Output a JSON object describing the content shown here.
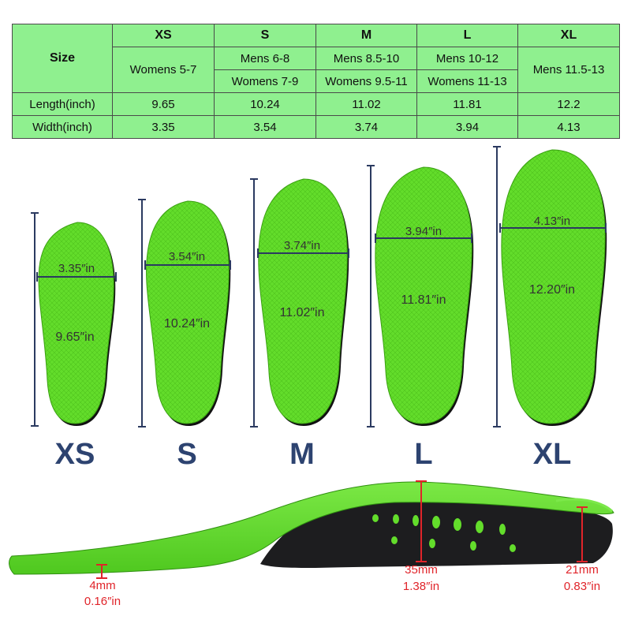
{
  "table": {
    "header_label": "Size",
    "sizes": [
      "XS",
      "S",
      "M",
      "L",
      "XL"
    ],
    "fit_row1": [
      "Womens 5-7",
      "Mens 6-8",
      "Mens 8.5-10",
      "Mens 10-12",
      "Mens 11.5-13"
    ],
    "fit_row2": [
      "Womens 7-9",
      "Womens 9.5-11",
      "Womens 11-13"
    ],
    "length_label": "Length(inch)",
    "lengths": [
      "9.65",
      "10.24",
      "11.02",
      "11.81",
      "12.2"
    ],
    "width_label": "Width(inch)",
    "widths": [
      "3.35",
      "3.54",
      "3.74",
      "3.94",
      "4.13"
    ]
  },
  "insoles": [
    {
      "size": "XS",
      "width_label": "3.35″in",
      "length_label": "9.65″in"
    },
    {
      "size": "S",
      "width_label": "3.54″in",
      "length_label": "10.24″in"
    },
    {
      "size": "M",
      "width_label": "3.74″in",
      "length_label": "11.02″in"
    },
    {
      "size": "L",
      "width_label": "3.94″in",
      "length_label": "11.81″in"
    },
    {
      "size": "XL",
      "width_label": "4.13″in",
      "length_label": "12.20″in"
    }
  ],
  "profile": {
    "toe_mm": "4mm",
    "toe_in": "0.16″in",
    "arch_mm": "35mm",
    "arch_in": "1.38″in",
    "heel_mm": "21mm",
    "heel_in": "0.83″in"
  },
  "colors": {
    "table_bg": "#8ff08f",
    "insole_green": "#63dd2b",
    "base_black": "#1d1d1f",
    "dimension_navy": "#2b3a60",
    "size_label": "#2d4370",
    "measure_red": "#e0242a"
  }
}
